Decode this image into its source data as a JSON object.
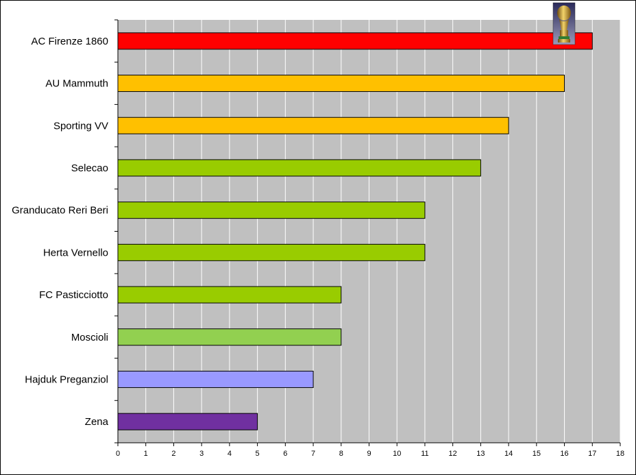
{
  "chart_data": {
    "type": "bar",
    "orientation": "horizontal",
    "title": "",
    "xlabel": "",
    "ylabel": "",
    "xlim": [
      0,
      18
    ],
    "xticks": [
      0,
      1,
      2,
      3,
      4,
      5,
      6,
      7,
      8,
      9,
      10,
      11,
      12,
      13,
      14,
      15,
      16,
      17,
      18
    ],
    "grid": true,
    "legend": "none",
    "plot_background": "#c0c0c0",
    "gridline_color": "#ffffff",
    "categories": [
      "AC Firenze 1860",
      "AU Mammuth",
      "Sporting VV",
      "Selecao",
      "Granducato Reri Beri",
      "Herta Vernello",
      "FC Pasticciotto",
      "Moscioli",
      "Hajduk Preganziol",
      "Zena"
    ],
    "values": [
      17,
      16,
      14,
      13,
      11,
      11,
      8,
      8,
      7,
      5
    ],
    "colors": [
      "#ff0000",
      "#ffc000",
      "#ffc000",
      "#99cc00",
      "#99cc00",
      "#99cc00",
      "#99cc00",
      "#92d050",
      "#9999ff",
      "#7030a0"
    ],
    "annotation_icon": "trophy-icon"
  }
}
